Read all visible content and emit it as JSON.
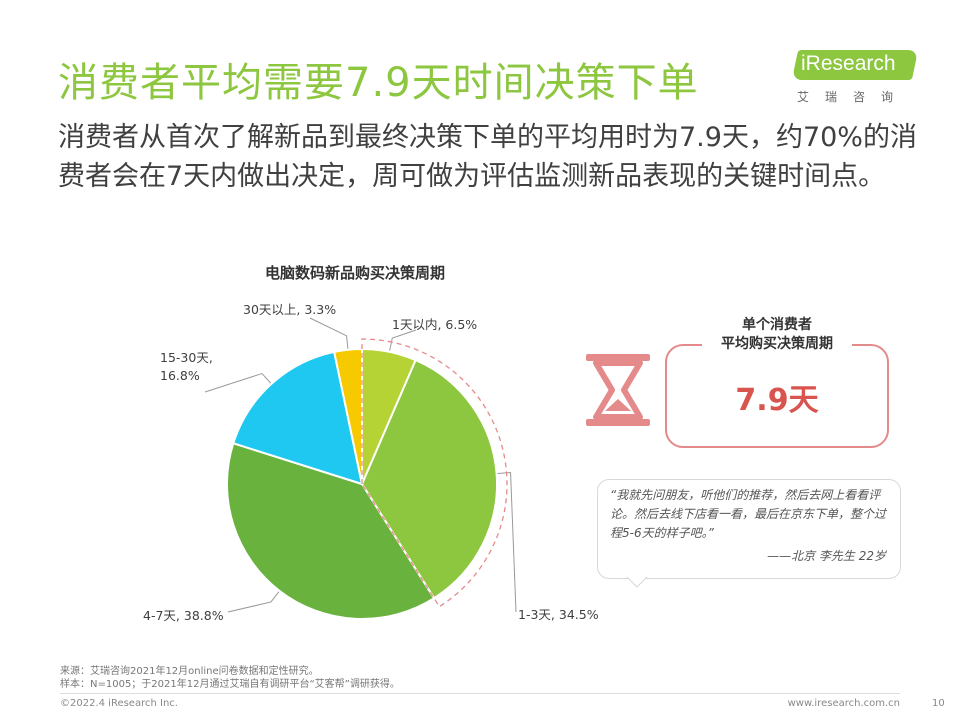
{
  "header": {
    "title": "消费者平均需要7.9天时间决策下单",
    "logo_text": "iResearch",
    "logo_subtext": "艾瑞咨询"
  },
  "subtitle": "消费者从首次了解新品到最终决策下单的平均用时为7.9天，约70%的消费者会在7天内做出决定，周可做为评估监测新品表现的关键时间点。",
  "chart_data": {
    "type": "pie",
    "title": "电脑数码新品购买决策周期",
    "slices": [
      {
        "label": "1天以内",
        "value": 6.5,
        "value_label": "6.5%",
        "color": "#b5d334"
      },
      {
        "label": "1-3天",
        "value": 34.5,
        "value_label": "34.5%",
        "color": "#8dc63f"
      },
      {
        "label": "4-7天",
        "value": 38.8,
        "value_label": "38.8%",
        "color": "#6ab23e"
      },
      {
        "label": "15-30天",
        "value": 16.8,
        "value_label": "16.8%",
        "color": "#1ec8f0"
      },
      {
        "label": "30天以上",
        "value": 3.3,
        "value_label": "3.3%",
        "color": "#f7c900"
      }
    ],
    "start_angle_deg": 0,
    "direction": "clockwise",
    "highlight_dashed_slices": [
      "1天以内",
      "1-3天"
    ],
    "highlight_color": "#e58a8a"
  },
  "labels": {
    "s0": "1天以内, 6.5%",
    "s1": "1-3天, 34.5%",
    "s2": "4-7天, 38.8%",
    "s3_line1": "15-30天,",
    "s3_line2": "16.8%",
    "s4": "30天以上, 3.3%"
  },
  "stat": {
    "label_line1": "单个消费者",
    "label_line2": "平均购买决策周期",
    "value": "7.9天"
  },
  "quote": {
    "text": "“我就先问朋友，听他们的推荐，然后去网上看看评论。然后去线下店看一看，最后在京东下单，整个过程5-6天的样子吧。”",
    "signature": "——北京  李先生 22岁"
  },
  "footer": {
    "source_line1": "来源：艾瑞咨询2021年12月online问卷数据和定性研究。",
    "source_line2": "样本：N=1005；于2021年12月通过艾瑞自有调研平台“艾客帮”调研获得。",
    "copyright": "©2022.4 iResearch Inc.",
    "website": "www.iresearch.com.cn",
    "page": "10"
  },
  "colors": {
    "accent_green": "#8dc63f",
    "accent_red": "#e58a8a",
    "value_red": "#d9534f"
  }
}
